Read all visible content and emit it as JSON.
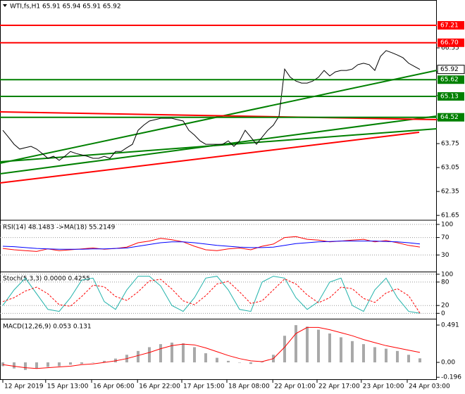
{
  "chart_data": [
    {
      "type": "line",
      "title": "WTI,fs,H1  65.91 65.94 65.91 65.92",
      "xlim": [
        -0.5,
        77
      ],
      "ylim": [
        61.53,
        67.95
      ],
      "yticks": [
        61.65,
        62.35,
        63.05,
        63.75,
        64.45,
        65.15,
        65.85,
        66.55
      ],
      "xticks": [
        {
          "value": 0,
          "label": "12 Apr 2019"
        },
        {
          "value": 7.6,
          "label": "15 Apr 13:00"
        },
        {
          "value": 15.75,
          "label": "16 Apr 06:00"
        },
        {
          "value": 23.9,
          "label": "16 Apr 22:00"
        },
        {
          "value": 31.75,
          "label": "17 Apr 15:00"
        },
        {
          "value": 39.75,
          "label": "18 Apr 08:00"
        },
        {
          "value": 47.9,
          "label": "22 Apr 01:00"
        },
        {
          "value": 55.75,
          "label": "22 Apr 17:00"
        },
        {
          "value": 63.6,
          "label": "23 Apr 10:00"
        },
        {
          "value": 71.75,
          "label": "24 Apr 03:00"
        }
      ],
      "series": [
        {
          "style": "line",
          "color": "#000000",
          "values": [
            64.14,
            63.94,
            63.73,
            63.59,
            63.63,
            63.67,
            63.59,
            63.46,
            63.32,
            63.38,
            63.26,
            63.38,
            63.52,
            63.46,
            63.42,
            63.38,
            63.32,
            63.32,
            63.38,
            63.32,
            63.52,
            63.52,
            63.63,
            63.73,
            64.14,
            64.29,
            64.41,
            64.45,
            64.49,
            64.49,
            64.49,
            64.45,
            64.41,
            64.14,
            64.0,
            63.83,
            63.73,
            63.73,
            63.73,
            63.73,
            63.83,
            63.67,
            63.83,
            64.14,
            63.94,
            63.73,
            63.94,
            64.14,
            64.29,
            64.55,
            65.93,
            65.69,
            65.58,
            65.52,
            65.52,
            65.58,
            65.69,
            65.89,
            65.73,
            65.85,
            65.89,
            65.89,
            65.93,
            66.06,
            66.1,
            66.06,
            65.89,
            66.3,
            66.47,
            66.41,
            66.34,
            66.26,
            66.1,
            66.01,
            65.92
          ]
        }
      ],
      "levels": [
        {
          "value": 67.21,
          "color": "#ff0000",
          "kind": "level"
        },
        {
          "value": 66.7,
          "label": "66.70",
          "color": "#ff0000",
          "kind": "level"
        },
        {
          "value": 65.92,
          "color": "#000000",
          "kind": "price"
        },
        {
          "value": 65.62,
          "color": "#008000",
          "kind": "level"
        },
        {
          "value": 65.13,
          "color": "#008000",
          "kind": "level"
        },
        {
          "value": 64.52,
          "color": "#008000",
          "kind": "level"
        }
      ]
    },
    {
      "type": "line",
      "title": "RSI(14) 48.1483 ->MA(18) 55.2149",
      "xlim": [
        -0.25,
        38.5
      ],
      "ylim": [
        -8,
        108
      ],
      "yticks": [
        30,
        70,
        100
      ],
      "grid": true,
      "series": [
        {
          "style": "line",
          "color": "#ff0000",
          "values": [
            45,
            42,
            40,
            38,
            44,
            40,
            42,
            44,
            46,
            43,
            45,
            48,
            58,
            62,
            68,
            65,
            60,
            50,
            42,
            40,
            44,
            46,
            42,
            50,
            55,
            70,
            72,
            66,
            64,
            60,
            62,
            64,
            66,
            60,
            63,
            58,
            52,
            48.15
          ]
        },
        {
          "style": "line",
          "color": "#0000ff",
          "values": [
            50,
            49,
            47,
            45,
            44,
            43,
            43,
            43,
            44,
            44,
            45,
            46,
            50,
            54,
            58,
            60,
            60,
            58,
            55,
            52,
            50,
            48,
            47,
            47,
            48,
            52,
            56,
            58,
            60,
            61,
            62,
            62,
            62,
            62,
            61,
            60,
            58,
            55.21
          ]
        }
      ]
    },
    {
      "type": "line",
      "title": "Stoch(5,3,3) 0.0000 0.4255",
      "xlim": [
        -0.25,
        38.5
      ],
      "ylim": [
        -12,
        105
      ],
      "yticks": [
        0,
        20,
        80,
        100
      ],
      "grid": true,
      "series": [
        {
          "style": "line",
          "color": "#20b2aa",
          "values": [
            20,
            60,
            90,
            50,
            10,
            5,
            40,
            85,
            90,
            30,
            10,
            60,
            95,
            95,
            70,
            20,
            5,
            40,
            90,
            95,
            60,
            10,
            5,
            80,
            95,
            90,
            40,
            10,
            30,
            80,
            90,
            20,
            5,
            60,
            90,
            40,
            5,
            0
          ]
        },
        {
          "style": "dashed",
          "color": "#ff0000",
          "values": [
            30,
            40,
            57,
            67,
            50,
            22,
            18,
            43,
            72,
            68,
            43,
            33,
            55,
            83,
            87,
            62,
            32,
            22,
            45,
            75,
            82,
            55,
            25,
            32,
            60,
            88,
            75,
            47,
            27,
            40,
            67,
            63,
            38,
            28,
            52,
            63,
            45,
            0.43
          ]
        }
      ]
    },
    {
      "type": "bar",
      "title": "MACD(12,26,9) 0.053 0.131",
      "xlim": [
        -0.25,
        38.5
      ],
      "ylim": [
        -0.231,
        0.556
      ],
      "yticks": [
        -0.196,
        {
          "value": 0,
          "label": "0.00"
        },
        0.491
      ],
      "series": [
        {
          "style": "bar",
          "color": "#a9a9a9",
          "values": [
            -0.05,
            -0.08,
            -0.1,
            -0.08,
            -0.06,
            -0.05,
            -0.03,
            -0.02,
            0,
            0.02,
            0.05,
            0.1,
            0.15,
            0.2,
            0.24,
            0.26,
            0.25,
            0.2,
            0.12,
            0.06,
            0.02,
            0,
            -0.02,
            0.01,
            0.1,
            0.35,
            0.49,
            0.47,
            0.43,
            0.38,
            0.33,
            0.28,
            0.24,
            0.2,
            0.18,
            0.15,
            0.1,
            0.053
          ]
        },
        {
          "style": "line",
          "color": "#ff0000",
          "values": [
            -0.03,
            -0.05,
            -0.07,
            -0.08,
            -0.07,
            -0.06,
            -0.05,
            -0.03,
            -0.02,
            0,
            0.02,
            0.05,
            0.09,
            0.13,
            0.18,
            0.22,
            0.24,
            0.23,
            0.19,
            0.14,
            0.09,
            0.05,
            0.02,
            0.01,
            0.05,
            0.2,
            0.38,
            0.46,
            0.46,
            0.43,
            0.39,
            0.35,
            0.3,
            0.26,
            0.22,
            0.19,
            0.16,
            0.131
          ]
        }
      ]
    }
  ]
}
